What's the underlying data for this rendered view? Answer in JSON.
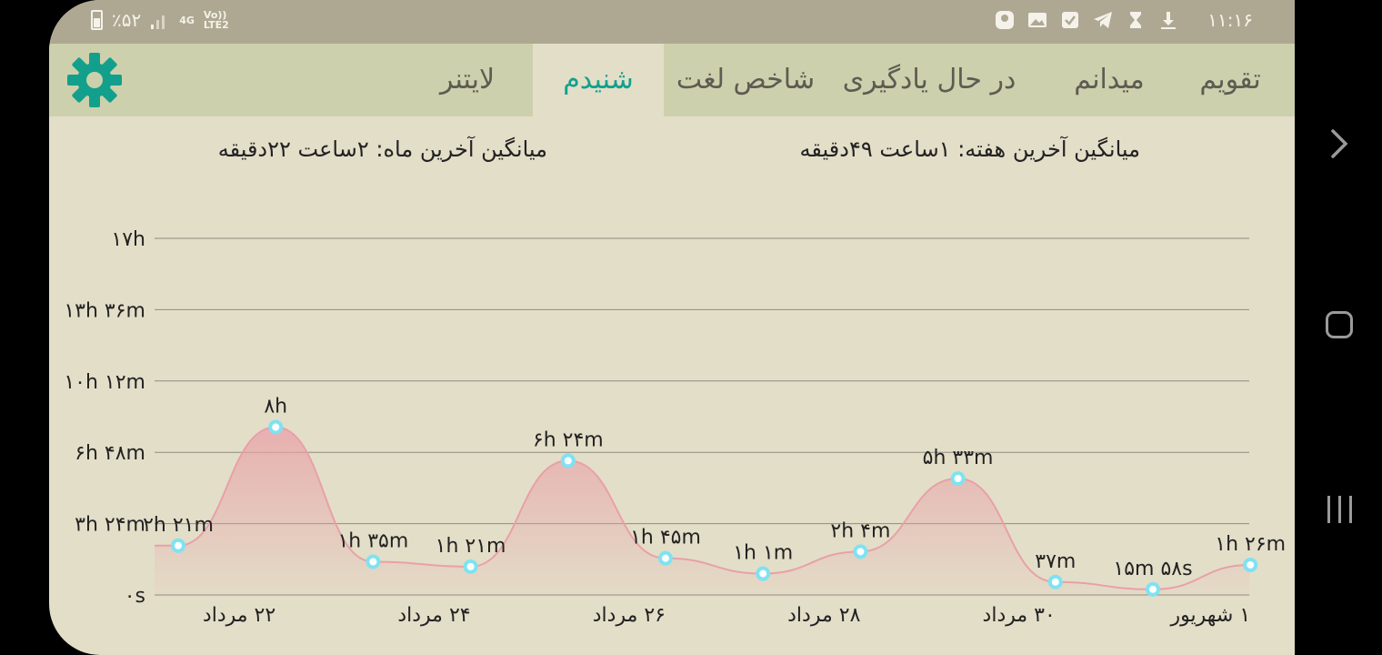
{
  "status_bar": {
    "battery_text": "٪۵۲",
    "network_text": "4G",
    "volte_text": "Vo))",
    "lte_text": "LTE2",
    "time": "۱۱:۱۶"
  },
  "tabs": [
    {
      "label": "تقویم",
      "active": false
    },
    {
      "label": "میدانم",
      "active": false
    },
    {
      "label": "در حال یادگیری",
      "active": false
    },
    {
      "label": "شاخص لغت",
      "active": false
    },
    {
      "label": "شنیدم",
      "active": true
    },
    {
      "label": "لایتنر",
      "active": false
    }
  ],
  "colors": {
    "accent": "#12a08c",
    "status_bar": "#aea892",
    "tab_bar": "#cdd0ac",
    "background": "#e3dec8",
    "curve": "#e9a0a8",
    "point": "#7fe2f2"
  },
  "summary": {
    "weekly": "میانگین آخرین هفته: ۱ساعت  ۴۹دقیقه",
    "monthly": "میانگین آخرین ماه: ۲ساعت  ۲۲دقیقه"
  },
  "chart_data": {
    "type": "area",
    "ylabel": "",
    "xlabel": "",
    "ylim_minutes": [
      0,
      1020
    ],
    "y_ticks": [
      {
        "value": 0,
        "label": "۰s"
      },
      {
        "value": 204,
        "label": "۳h ۲۴m"
      },
      {
        "value": 408,
        "label": "۶h ۴۸m"
      },
      {
        "value": 612,
        "label": "۱۰h ۱۲m"
      },
      {
        "value": 816,
        "label": "۱۳h ۳۶m"
      },
      {
        "value": 1020,
        "label": "۱۷h"
      }
    ],
    "x_ticks": [
      {
        "index": 1,
        "label": "۲۲ مرداد"
      },
      {
        "index": 3,
        "label": "۲۴ مرداد"
      },
      {
        "index": 5,
        "label": "۲۶ مرداد"
      },
      {
        "index": 7,
        "label": "۲۸ مرداد"
      },
      {
        "index": 9,
        "label": "۳۰ مرداد"
      },
      {
        "index": 11,
        "label": "۱ شهریور"
      }
    ],
    "points": [
      {
        "value": 141,
        "label": "۲h ۲۱m"
      },
      {
        "value": 480,
        "label": "۸h"
      },
      {
        "value": 95,
        "label": "۱h ۳۵m"
      },
      {
        "value": 81,
        "label": "۱h ۲۱m"
      },
      {
        "value": 384,
        "label": "۶h ۲۴m"
      },
      {
        "value": 105,
        "label": "۱h ۴۵m"
      },
      {
        "value": 61,
        "label": "۱h ۱m"
      },
      {
        "value": 124,
        "label": "۲h ۴m"
      },
      {
        "value": 333,
        "label": "۵h ۳۳m"
      },
      {
        "value": 37,
        "label": "۳۷m"
      },
      {
        "value": 16,
        "label": "۱۵m ۵۸s"
      },
      {
        "value": 86,
        "label": "۱h ۲۶m"
      }
    ]
  }
}
